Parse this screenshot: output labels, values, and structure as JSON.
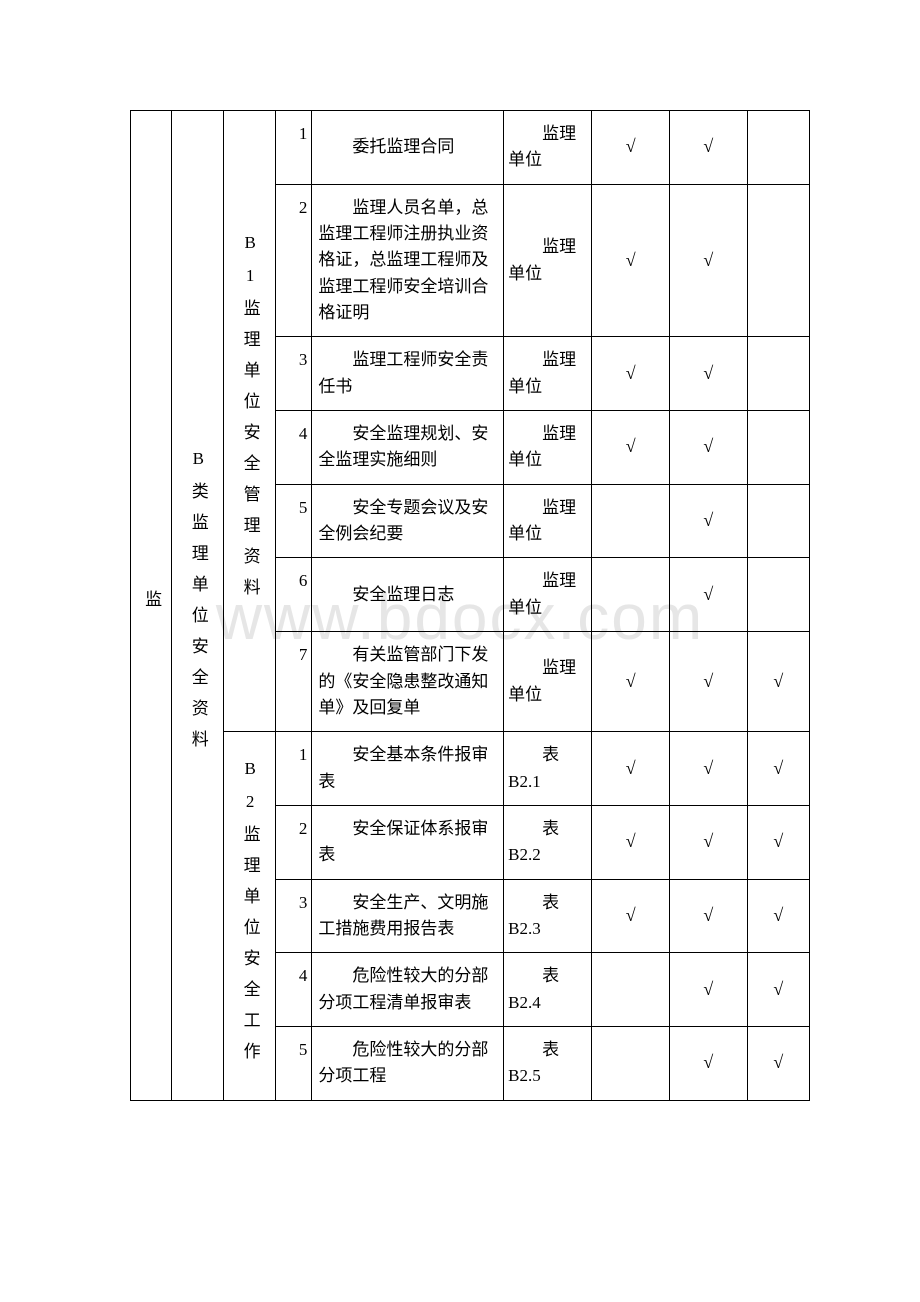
{
  "watermark_text": "www.bdocx.com",
  "watermark_color": "#e6e6e6",
  "border_color": "#000000",
  "check_mark": "√",
  "level1": {
    "label": "监"
  },
  "level2": {
    "label": "B类监理单位安全资料"
  },
  "sections": {
    "b1": {
      "code": "B1",
      "label": "监理单位安全管理资料",
      "rows": [
        {
          "n": "1",
          "desc": "委托监理合同",
          "src": "监理单位",
          "c1": "√",
          "c2": "√",
          "c3": ""
        },
        {
          "n": "2",
          "desc": "监理人员名单，总监理工程师注册执业资格证，总监理工程师及监理工程师安全培训合格证明",
          "src": "监理单位",
          "c1": "√",
          "c2": "√",
          "c3": ""
        },
        {
          "n": "3",
          "desc": "监理工程师安全责任书",
          "src": "监理单位",
          "c1": "√",
          "c2": "√",
          "c3": ""
        },
        {
          "n": "4",
          "desc": "安全监理规划、安全监理实施细则",
          "src": "监理单位",
          "c1": "√",
          "c2": "√",
          "c3": ""
        },
        {
          "n": "5",
          "desc": "安全专题会议及安全例会纪要",
          "src": "监理单位",
          "c1": "",
          "c2": "√",
          "c3": ""
        },
        {
          "n": "6",
          "desc": "安全监理日志",
          "src": "监理单位",
          "c1": "",
          "c2": "√",
          "c3": ""
        },
        {
          "n": "7",
          "desc": "有关监管部门下发的《安全隐患整改通知单》及回复单",
          "src": "监理单位",
          "c1": "√",
          "c2": "√",
          "c3": "√"
        }
      ]
    },
    "b2": {
      "code": "B2",
      "label": "监理单位安全工作",
      "rows": [
        {
          "n": "1",
          "desc": "安全基本条件报审表",
          "src": "表B2.1",
          "c1": "√",
          "c2": "√",
          "c3": "√"
        },
        {
          "n": "2",
          "desc": "安全保证体系报审表",
          "src": "表B2.2",
          "c1": "√",
          "c2": "√",
          "c3": "√"
        },
        {
          "n": "3",
          "desc": "安全生产、文明施工措施费用报告表",
          "src": "表B2.3",
          "c1": "√",
          "c2": "√",
          "c3": "√"
        },
        {
          "n": "4",
          "desc": "危险性较大的分部分项工程清单报审表",
          "src": "表B2.4",
          "c1": "",
          "c2": "√",
          "c3": "√"
        },
        {
          "n": "5",
          "desc": "危险性较大的分部分项工程",
          "src": "表B2.5",
          "c1": "",
          "c2": "√",
          "c3": "√"
        }
      ]
    }
  }
}
